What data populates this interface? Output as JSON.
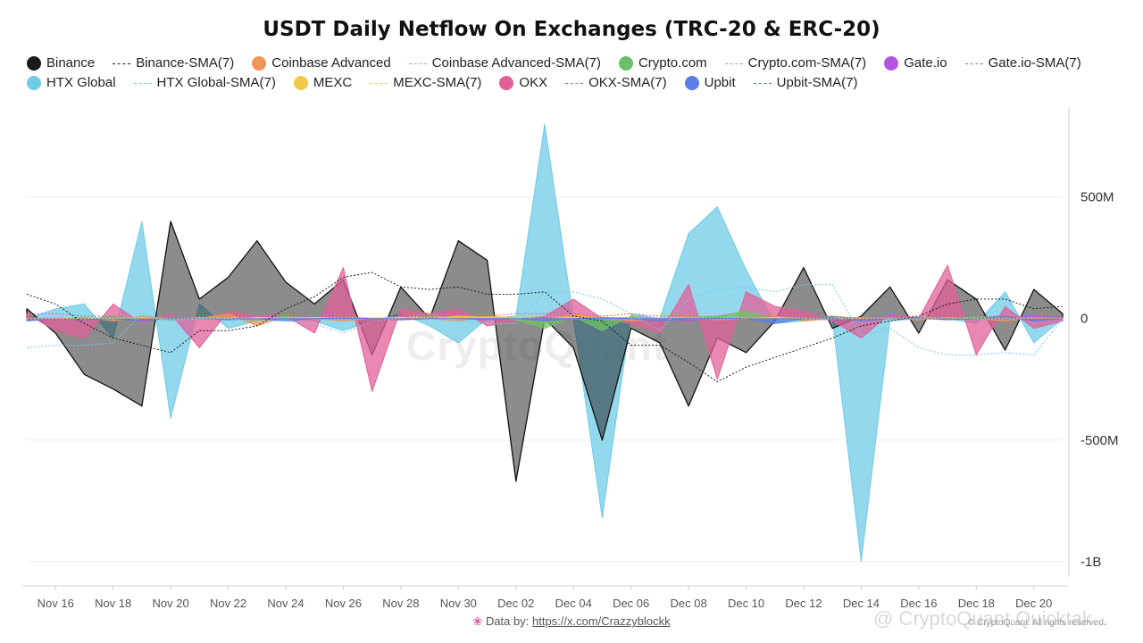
{
  "title": "USDT Daily Netflow On Exchanges (TRC-20 & ERC-20)",
  "watermark": "CryptoQuant",
  "footer": {
    "prefix": "Data by:",
    "link": "https://x.com/Crazzyblockk",
    "credit": "© CryptoQuant. All rights reserved.",
    "handle": "@ CryptoQuant Quicktak..."
  },
  "colors": {
    "Binance": "#1a1a1a",
    "Coinbase Advanced": "#f0955a",
    "Crypto.com": "#6cc06a",
    "Gate.io": "#b455e0",
    "HTX Global": "#6fcbe6",
    "MEXC": "#f2c84b",
    "OKX": "#e0609a",
    "Upbit": "#5a7de6"
  },
  "legend": [
    {
      "label": "Binance",
      "kind": "dot",
      "series": "Binance"
    },
    {
      "label": "Binance-SMA(7)",
      "kind": "line",
      "series": "Binance"
    },
    {
      "label": "Coinbase Advanced",
      "kind": "dot",
      "series": "Coinbase Advanced"
    },
    {
      "label": "Coinbase Advanced-SMA(7)",
      "kind": "line",
      "series": "Coinbase Advanced"
    },
    {
      "label": "Crypto.com",
      "kind": "dot",
      "series": "Crypto.com"
    },
    {
      "label": "Crypto.com-SMA(7)",
      "kind": "line",
      "series": "Crypto.com"
    },
    {
      "label": "Gate.io",
      "kind": "dot",
      "series": "Gate.io"
    },
    {
      "label": "Gate.io-SMA(7)",
      "kind": "line",
      "series": "Gate.io"
    },
    {
      "label": "HTX Global",
      "kind": "dot",
      "series": "HTX Global"
    },
    {
      "label": "HTX Global-SMA(7)",
      "kind": "line",
      "series": "HTX Global"
    },
    {
      "label": "MEXC",
      "kind": "dot",
      "series": "MEXC"
    },
    {
      "label": "MEXC-SMA(7)",
      "kind": "line",
      "series": "MEXC"
    },
    {
      "label": "OKX",
      "kind": "dot",
      "series": "OKX"
    },
    {
      "label": "OKX-SMA(7)",
      "kind": "line",
      "series": "OKX"
    },
    {
      "label": "Upbit",
      "kind": "dot",
      "series": "Upbit"
    },
    {
      "label": "Upbit-SMA(7)",
      "kind": "line",
      "series": "Upbit"
    }
  ],
  "chart_data": {
    "type": "area",
    "title": "USDT Daily Netflow On Exchanges (TRC-20 & ERC-20)",
    "x": [
      "2023-11-15",
      "2023-11-16",
      "2023-11-17",
      "2023-11-18",
      "2023-11-19",
      "2023-11-20",
      "2023-11-21",
      "2023-11-22",
      "2023-11-23",
      "2023-11-24",
      "2023-11-25",
      "2023-11-26",
      "2023-11-27",
      "2023-11-28",
      "2023-11-29",
      "2023-11-30",
      "2023-12-01",
      "2023-12-02",
      "2023-12-03",
      "2023-12-04",
      "2023-12-05",
      "2023-12-06",
      "2023-12-07",
      "2023-12-08",
      "2023-12-09",
      "2023-12-10",
      "2023-12-11",
      "2023-12-12",
      "2023-12-13",
      "2023-12-14",
      "2023-12-15",
      "2023-12-16",
      "2023-12-17",
      "2023-12-18",
      "2023-12-19",
      "2023-12-20",
      "2023-12-21"
    ],
    "x_ticks": [
      "Nov 16",
      "Nov 18",
      "Nov 20",
      "Nov 22",
      "Nov 24",
      "Nov 26",
      "Nov 28",
      "Nov 30",
      "Dec 02",
      "Dec 04",
      "Dec 06",
      "Dec 08",
      "Dec 10",
      "Dec 12",
      "Dec 14",
      "Dec 16",
      "Dec 18",
      "Dec 20"
    ],
    "y_ticks": [
      {
        "value": 500,
        "label": "500M"
      },
      {
        "value": 0,
        "label": "0"
      },
      {
        "value": -500,
        "label": "-500M"
      },
      {
        "value": -1000,
        "label": "-1B"
      }
    ],
    "ylim": [
      -1100,
      870
    ],
    "y_unit": "M USD",
    "series": [
      {
        "name": "HTX Global",
        "values": [
          0,
          40,
          60,
          -80,
          400,
          -410,
          60,
          -40,
          -10,
          10,
          -10,
          -50,
          -10,
          20,
          -30,
          -100,
          0,
          10,
          800,
          0,
          -820,
          20,
          0,
          350,
          460,
          200,
          -20,
          -10,
          0,
          -1000,
          -10,
          0,
          0,
          -20,
          110,
          -100,
          0
        ]
      },
      {
        "name": "Binance",
        "values": [
          40,
          -60,
          -230,
          -290,
          -360,
          400,
          80,
          170,
          320,
          150,
          60,
          160,
          -150,
          130,
          0,
          320,
          240,
          -670,
          0,
          -120,
          -500,
          -40,
          -100,
          -360,
          -80,
          -140,
          -10,
          210,
          -40,
          10,
          130,
          -60,
          160,
          80,
          -130,
          120,
          20
        ]
      },
      {
        "name": "OKX",
        "values": [
          20,
          -50,
          -80,
          60,
          -20,
          20,
          -120,
          30,
          10,
          10,
          -60,
          210,
          -300,
          40,
          20,
          40,
          -30,
          -10,
          10,
          80,
          0,
          -20,
          -60,
          140,
          -250,
          110,
          50,
          30,
          -10,
          -80,
          20,
          0,
          220,
          -150,
          50,
          -40,
          -10
        ]
      },
      {
        "name": "Gate.io",
        "values": [
          0,
          5,
          0,
          -5,
          5,
          0,
          5,
          0,
          -5,
          5,
          0,
          5,
          0,
          -5,
          0,
          5,
          0,
          0,
          5,
          0,
          0,
          5,
          0,
          -10,
          5,
          0,
          5,
          0,
          -5,
          0,
          10,
          0,
          5,
          0,
          5,
          10,
          5
        ]
      },
      {
        "name": "Coinbase Advanced",
        "values": [
          -5,
          0,
          5,
          -10,
          10,
          -5,
          0,
          20,
          -30,
          10,
          0,
          -10,
          0,
          5,
          0,
          -10,
          10,
          0,
          -20,
          20,
          0,
          -10,
          0,
          10,
          -5,
          0,
          10,
          -10,
          0,
          5,
          0,
          -5,
          5,
          0,
          -10,
          5,
          0
        ]
      },
      {
        "name": "Crypto.com",
        "values": [
          0,
          5,
          -5,
          10,
          0,
          -5,
          5,
          0,
          -5,
          10,
          0,
          5,
          0,
          -5,
          10,
          0,
          5,
          -5,
          -40,
          10,
          -50,
          10,
          0,
          5,
          10,
          30,
          0,
          -5,
          10,
          0,
          5,
          0,
          -5,
          10,
          0,
          5,
          0
        ]
      },
      {
        "name": "MEXC",
        "values": [
          0,
          5,
          0,
          0,
          5,
          0,
          0,
          -5,
          5,
          0,
          5,
          0,
          0,
          5,
          0,
          10,
          5,
          0,
          0,
          5,
          0,
          0,
          -5,
          0,
          5,
          0,
          5,
          0,
          0,
          -5,
          0,
          5,
          0,
          0,
          5,
          0,
          0
        ]
      },
      {
        "name": "Upbit",
        "values": [
          -10,
          0,
          -5,
          0,
          -10,
          5,
          0,
          -5,
          0,
          -10,
          0,
          5,
          0,
          -5,
          0,
          0,
          -5,
          0,
          -10,
          0,
          5,
          0,
          -10,
          0,
          5,
          0,
          -20,
          0,
          5,
          -10,
          0,
          5,
          -5,
          0,
          10,
          -10,
          0
        ]
      },
      {
        "name": "Binance-SMA(7)",
        "sma": true,
        "values": [
          100,
          60,
          -20,
          -80,
          -110,
          -140,
          -50,
          -50,
          -30,
          40,
          90,
          170,
          190,
          130,
          120,
          130,
          100,
          100,
          110,
          10,
          -10,
          -110,
          -110,
          -180,
          -260,
          -200,
          -160,
          -120,
          -80,
          -30,
          -10,
          10,
          60,
          80,
          80,
          40,
          50
        ]
      },
      {
        "name": "HTX Global-SMA(7)",
        "sma": true,
        "values": [
          -120,
          -110,
          -110,
          -100,
          20,
          -10,
          0,
          0,
          -10,
          -10,
          -20,
          -60,
          -10,
          0,
          20,
          -10,
          -20,
          -20,
          110,
          110,
          80,
          20,
          -50,
          80,
          120,
          130,
          110,
          140,
          140,
          -70,
          -40,
          -120,
          -150,
          -150,
          -140,
          -150,
          0
        ]
      },
      {
        "name": "OKX-SMA(7)",
        "sma": true,
        "values": [
          20,
          20,
          10,
          10,
          0,
          10,
          10,
          20,
          10,
          20,
          10,
          20,
          -10,
          0,
          0,
          20,
          10,
          20,
          20,
          20,
          10,
          20,
          10,
          10,
          -20,
          0,
          10,
          20,
          10,
          0,
          10,
          10,
          30,
          10,
          10,
          0,
          0
        ]
      },
      {
        "name": "MEXC-SMA(7)",
        "sma": true,
        "values": [
          0,
          0,
          0,
          2,
          2,
          2,
          3,
          3,
          3,
          4,
          4,
          5,
          5,
          6,
          6,
          6,
          7,
          7,
          7,
          6,
          6,
          5,
          5,
          4,
          4,
          3,
          3,
          2,
          2,
          2,
          2,
          2,
          2,
          2,
          2,
          2,
          2
        ]
      }
    ]
  }
}
